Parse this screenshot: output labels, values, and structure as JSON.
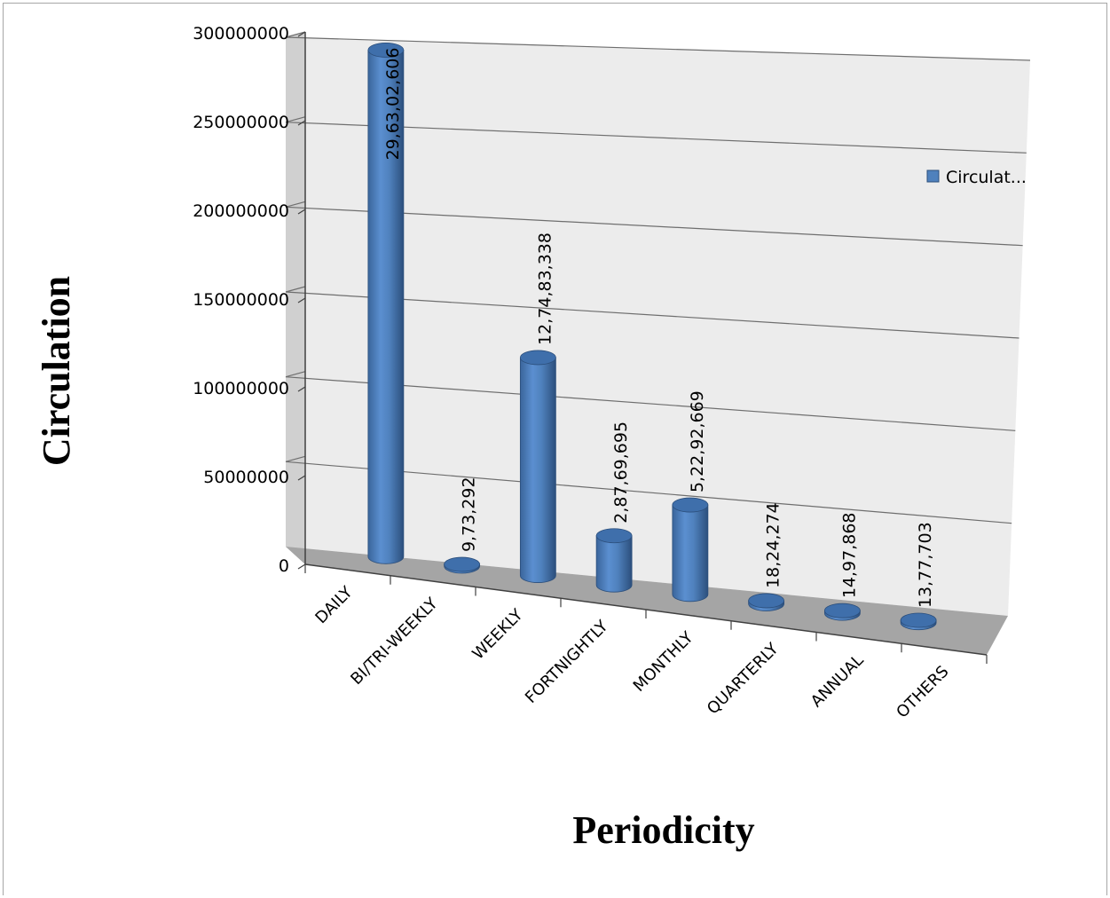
{
  "chart_data": {
    "type": "bar",
    "subtype": "3d-cylinder",
    "title": "",
    "xlabel": "Periodicity",
    "ylabel": "Circulation",
    "ylim": [
      0,
      300000000
    ],
    "yticks": [
      "0",
      "50000000",
      "100000000",
      "150000000",
      "200000000",
      "250000000",
      "300000000"
    ],
    "categories": [
      "DAILY",
      "BI/TRI-WEEKLY",
      "WEEKLY",
      "FORTNIGHTLY",
      "MONTHLY",
      "QUARTERLY",
      "ANNUAL",
      "OTHERS"
    ],
    "series": [
      {
        "name": "Circulat...",
        "color": "#4f81bd",
        "values": [
          296302606,
          973292,
          127483338,
          28769695,
          52292669,
          1824274,
          1497868,
          1377703
        ],
        "data_labels": [
          "29,63,02,606",
          "9,73,292",
          "12,74,83,338",
          "2,87,69,695",
          "5,22,92,669",
          "18,24,274",
          "14,97,868",
          "13,77,703"
        ]
      }
    ],
    "legend": {
      "position": "right"
    },
    "grid": true
  }
}
